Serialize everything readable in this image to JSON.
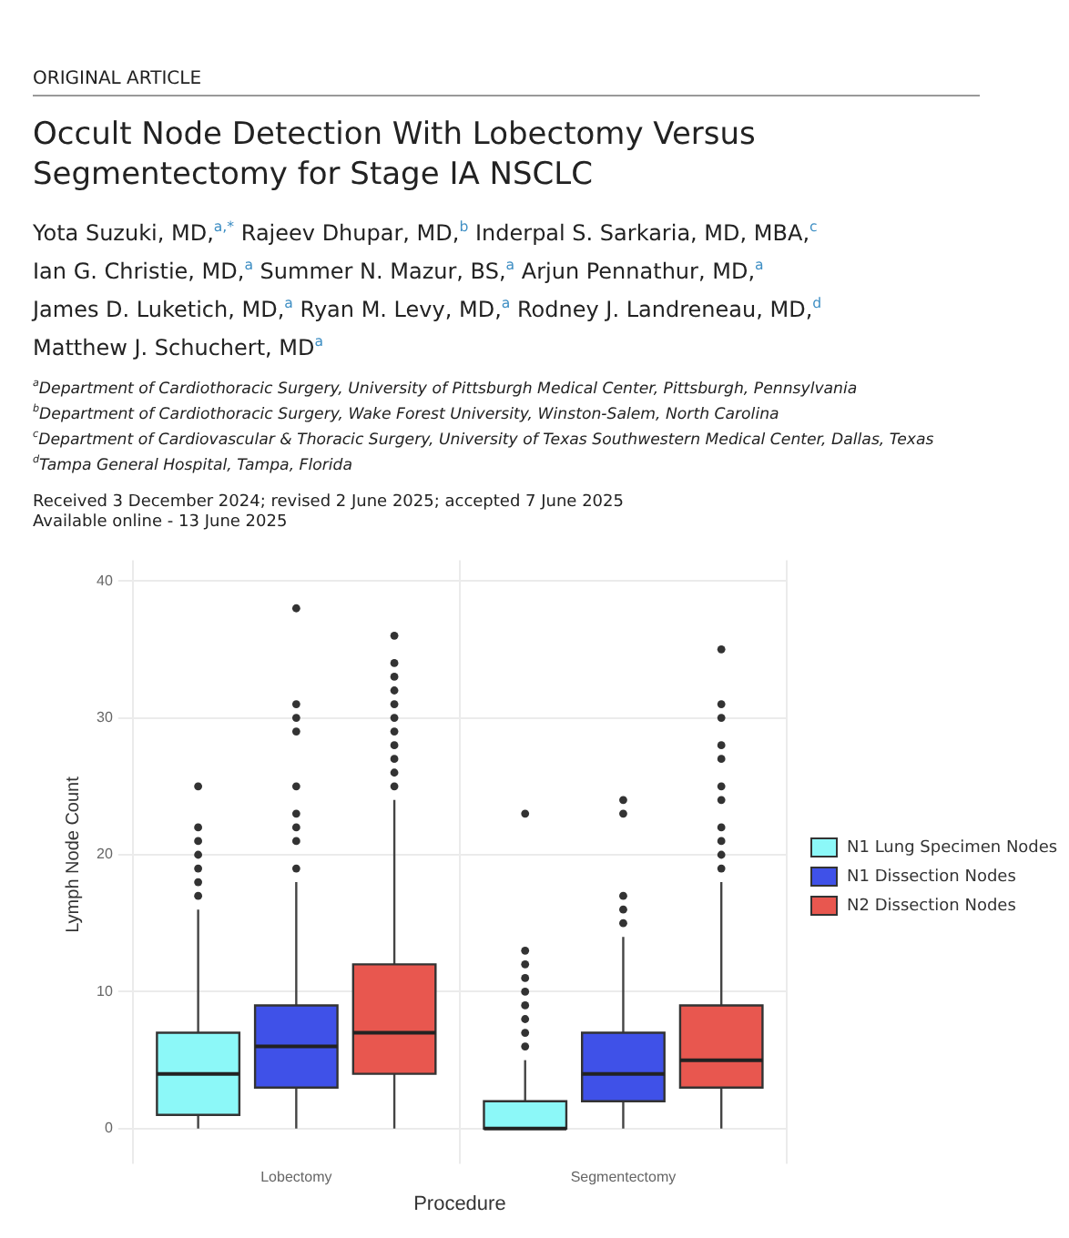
{
  "chart_data": {
    "type": "box",
    "title": "Occult Node Detection With Lobectomy Versus Segmentectomy for Stage IA NSCLC",
    "xlabel": "Procedure",
    "ylabel": "Lymph Node Count",
    "annotations": [
      "ORIGINAL ARTICLE",
      "Yota Suzuki, MD,$^{a,*}$ Rajeev Dhupar, MD,$^{b}$ Inderpal S. Sarkaria, MD, MBA,$^{c}$",
      "Ian G. Christie, MD,$^{a}$ Summer N. Mazur, BS,$^{a}$ Arjun Pennathur, MD,$^{a}$",
      "James D. Luketich, MD,$^{a}$ Ryan M. Levy, MD,$^{a}$ Rodney J. Landreneau, MD,$^{d}$",
      "Matthew J. Schuchert, MD$^{a}$",
      "$^{a}$Department of Cardiothoracic Surgery, University of Pittsburgh Medical Center, Pittsburgh, Pennsylvania",
      "$^{b}$Department of Cardiothoracic Surgery, Wake Forest University, Winston-Salem, North Carolina",
      "$^{c}$Department of Cardiovascular & Thoracic Surgery, University of Texas Southwestern Medical Center, Dallas, Texas",
      "$^{d}$Tampa General Hospital, Tampa, Florida",
      "Received 3 December 2024; revised 2 June 2025; accepted 7 June 2025",
      "Available online - 13 June 2025"
    ],
    "categories": [
      "Lobectomy",
      "Segmentectomy"
    ],
    "series": [
      {
        "name": "N1 Lung Specimen Nodes",
        "color": "#8cf8f8",
        "boxes": [
          {
            "low": 0,
            "q1": 1,
            "median": 4,
            "q3": 7,
            "high": 16,
            "outliers": [
              17,
              18,
              19,
              20,
              21,
              22,
              25
            ]
          },
          {
            "low": 0,
            "q1": 0,
            "median": 0,
            "q3": 2,
            "high": 5,
            "outliers": [
              6,
              7,
              8,
              9,
              10,
              11,
              12,
              13,
              23
            ]
          }
        ]
      },
      {
        "name": "N1 Dissection Nodes",
        "color": "#3f51e8",
        "boxes": [
          {
            "low": 0,
            "q1": 3,
            "median": 6,
            "q3": 9,
            "high": 18,
            "outliers": [
              19,
              21,
              22,
              23,
              25,
              29,
              30,
              31,
              38
            ]
          },
          {
            "low": 0,
            "q1": 2,
            "median": 4,
            "q3": 7,
            "high": 14,
            "outliers": [
              15,
              16,
              17,
              23,
              24
            ]
          }
        ]
      },
      {
        "name": "N2 Dissection Nodes",
        "color": "#e8574f",
        "boxes": [
          {
            "low": 0,
            "q1": 4,
            "median": 7,
            "q3": 12,
            "high": 24,
            "outliers": [
              25,
              26,
              27,
              28,
              29,
              30,
              31,
              32,
              33,
              34,
              36
            ]
          },
          {
            "low": 0,
            "q1": 3,
            "median": 5,
            "q3": 9,
            "high": 18,
            "outliers": [
              19,
              20,
              21,
              22,
              24,
              25,
              27,
              28,
              30,
              31,
              35
            ]
          }
        ]
      }
    ],
    "ylim": [
      -1.5,
      41.5
    ],
    "yticks": [
      0,
      10,
      20,
      30,
      40
    ],
    "grid": true,
    "legend": "right"
  }
}
